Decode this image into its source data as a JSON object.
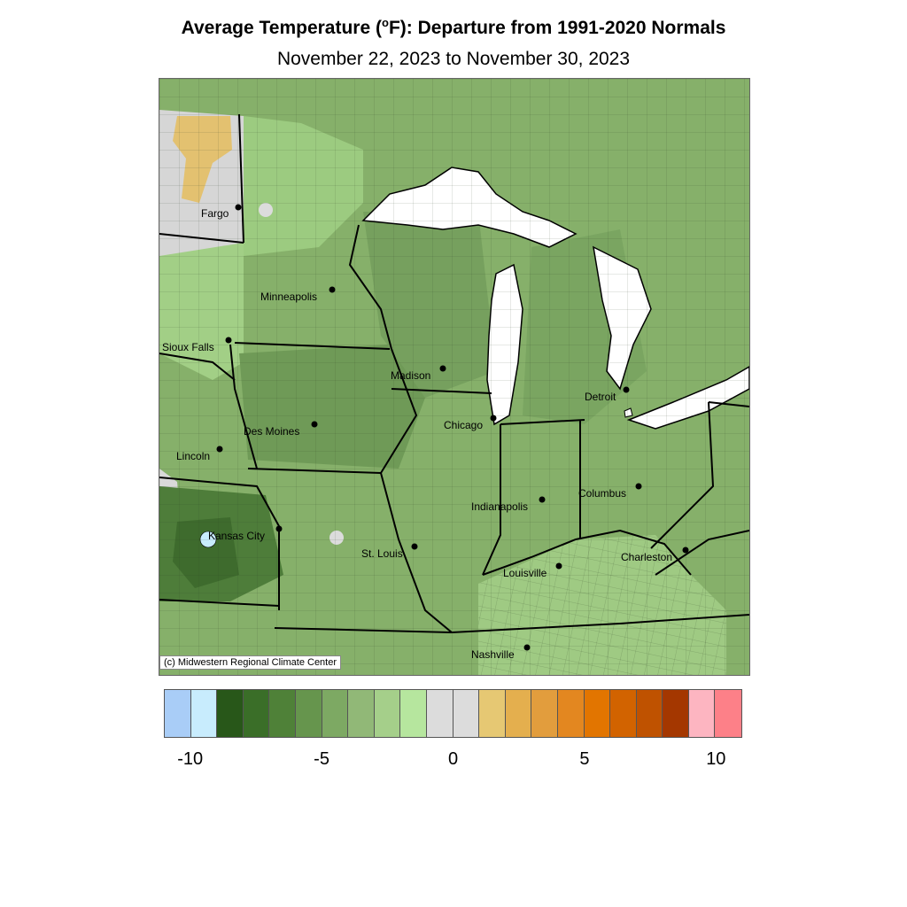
{
  "title_main": "Average Temperature (",
  "title_degree": "o",
  "title_rest": "F): Departure from 1991-2020 Normals",
  "subtitle": "November 22, 2023 to November 30, 2023",
  "credit": "(c) Midwestern Regional Climate Center",
  "cities": [
    {
      "name": "Fargo"
    },
    {
      "name": "Minneapolis"
    },
    {
      "name": "Sioux Falls"
    },
    {
      "name": "Madison"
    },
    {
      "name": "Detroit"
    },
    {
      "name": "Des Moines"
    },
    {
      "name": "Chicago"
    },
    {
      "name": "Lincoln"
    },
    {
      "name": "Columbus"
    },
    {
      "name": "Indianapolis"
    },
    {
      "name": "Kansas City"
    },
    {
      "name": "St. Louis"
    },
    {
      "name": "Charleston"
    },
    {
      "name": "Louisville"
    },
    {
      "name": "Nashville"
    }
  ],
  "legend": {
    "colors": [
      "#a9cdf7",
      "#c8ecfd",
      "#285719",
      "#3a6e28",
      "#4f8138",
      "#66954d",
      "#7da963",
      "#91b877",
      "#a5cf8a",
      "#b6e69e",
      "#dcdcdc",
      "#dcdcdc",
      "#e6c873",
      "#e4af4e",
      "#e29d3d",
      "#e38720",
      "#e27500",
      "#d26300",
      "#bf5200",
      "#a43700",
      "#fdb5c1",
      "#fd8088"
    ],
    "ticks": [
      {
        "value": -10,
        "label": "-10"
      },
      {
        "value": -5,
        "label": "-5"
      },
      {
        "value": 0,
        "label": "0"
      },
      {
        "value": 5,
        "label": "5"
      },
      {
        "value": 10,
        "label": "10"
      }
    ]
  }
}
